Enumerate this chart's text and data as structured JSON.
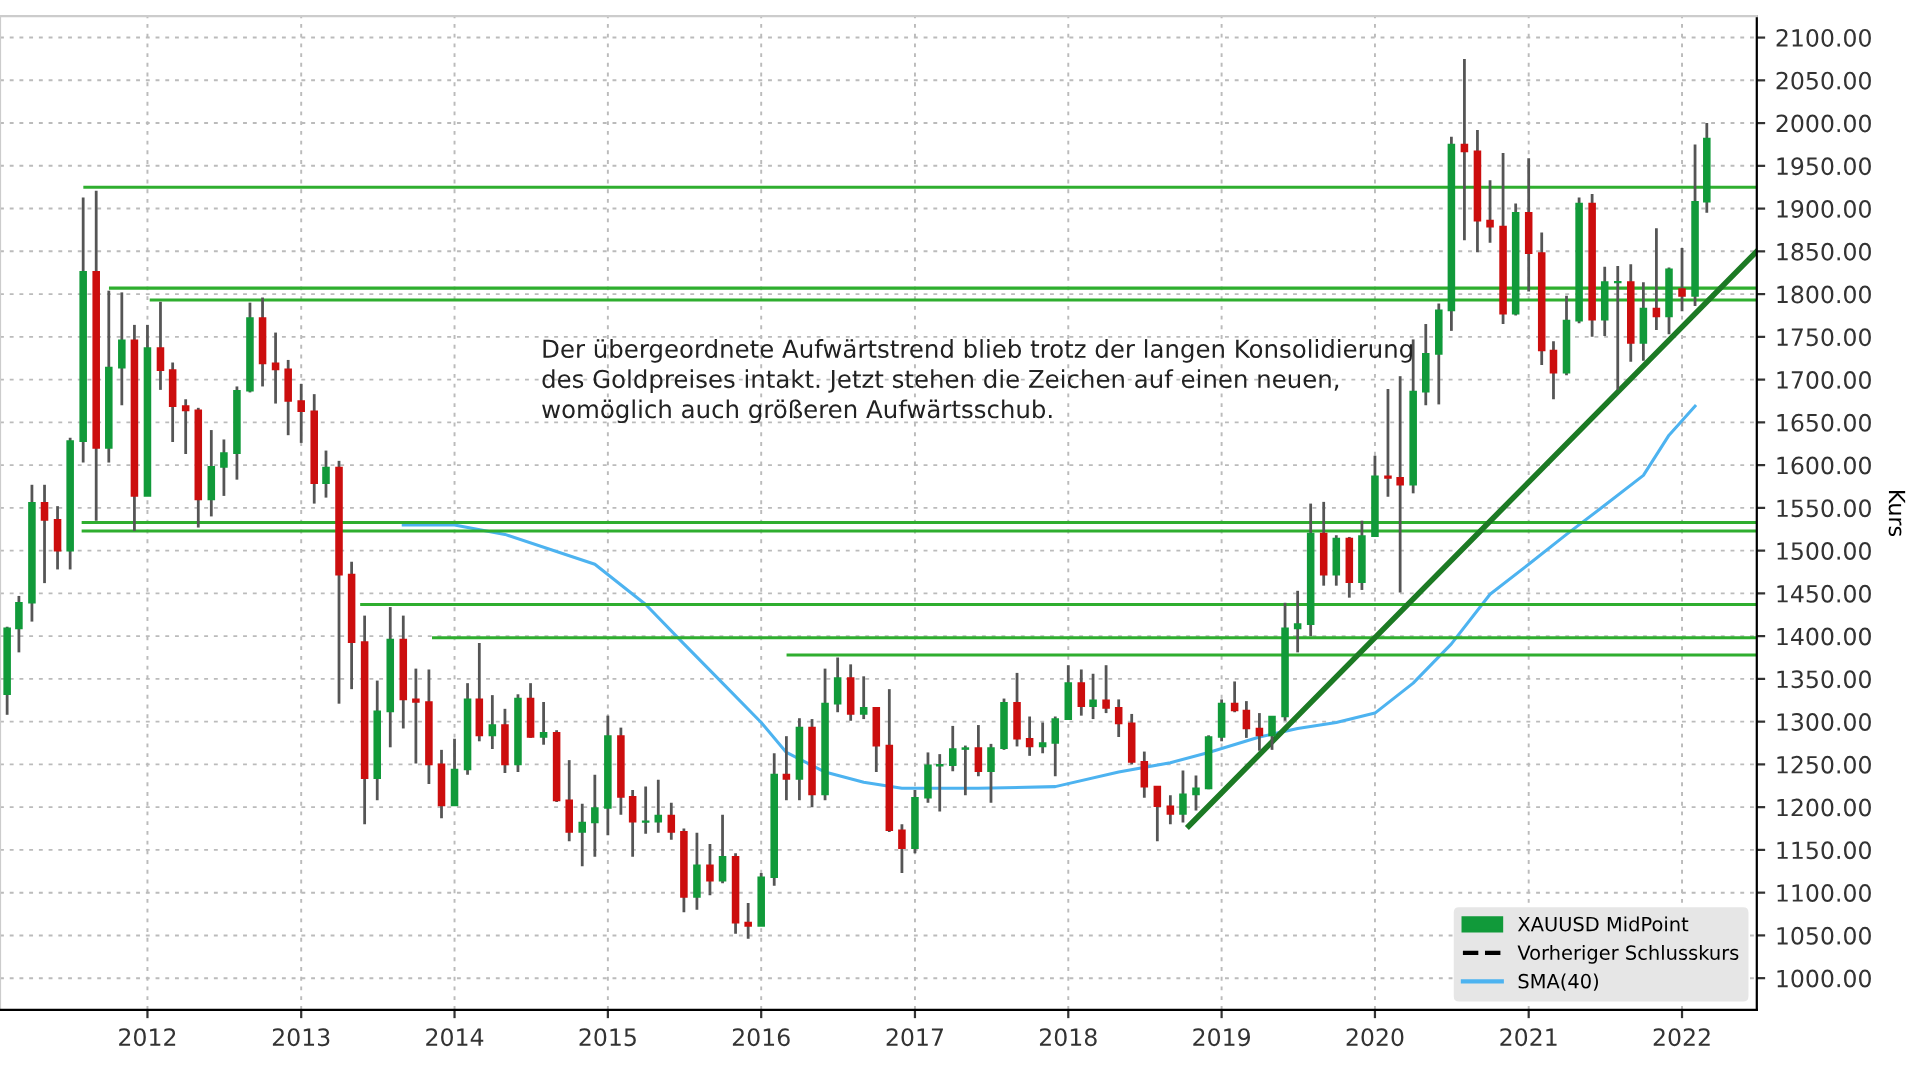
{
  "chart_data": {
    "type": "candlestick",
    "annotations": [
      "Der übergeordnete Aufwärtstrend blieb trotz der langen Konsolidierung des Goldpreises intakt. Jetzt stehen die Zeichen auf einen neuen, womöglich auch größeren Aufwärtsschub."
    ],
    "ylabel": "Kurs",
    "xlim": [
      "2011-01-15",
      "2022-06-28"
    ],
    "xticks": [
      {
        "value": "2012-01-01",
        "label": "2012"
      },
      {
        "value": "2013-01-01",
        "label": "2013"
      },
      {
        "value": "2014-01-01",
        "label": "2014"
      },
      {
        "value": "2015-01-01",
        "label": "2015"
      },
      {
        "value": "2016-01-01",
        "label": "2016"
      },
      {
        "value": "2017-01-01",
        "label": "2017"
      },
      {
        "value": "2018-01-01",
        "label": "2018"
      },
      {
        "value": "2019-01-01",
        "label": "2019"
      },
      {
        "value": "2020-01-01",
        "label": "2020"
      },
      {
        "value": "2021-01-01",
        "label": "2021"
      },
      {
        "value": "2022-01-01",
        "label": "2022"
      }
    ],
    "ylim": [
      963,
      2125
    ],
    "yticks": [
      {
        "value": 1000,
        "label": "1000.00"
      },
      {
        "value": 1050,
        "label": "1050.00"
      },
      {
        "value": 1100,
        "label": "1100.00"
      },
      {
        "value": 1150,
        "label": "1150.00"
      },
      {
        "value": 1200,
        "label": "1200.00"
      },
      {
        "value": 1250,
        "label": "1250.00"
      },
      {
        "value": 1300,
        "label": "1300.00"
      },
      {
        "value": 1350,
        "label": "1350.00"
      },
      {
        "value": 1400,
        "label": "1400.00"
      },
      {
        "value": 1450,
        "label": "1450.00"
      },
      {
        "value": 1500,
        "label": "1500.00"
      },
      {
        "value": 1550,
        "label": "1550.00"
      },
      {
        "value": 1600,
        "label": "1600.00"
      },
      {
        "value": 1650,
        "label": "1650.00"
      },
      {
        "value": 1700,
        "label": "1700.00"
      },
      {
        "value": 1750,
        "label": "1750.00"
      },
      {
        "value": 1800,
        "label": "1800.00"
      },
      {
        "value": 1850,
        "label": "1850.00"
      },
      {
        "value": 1900,
        "label": "1900.00"
      },
      {
        "value": 1950,
        "label": "1950.00"
      },
      {
        "value": 2000,
        "label": "2000.00"
      },
      {
        "value": 2050,
        "label": "2050.00"
      },
      {
        "value": 2100,
        "label": "2100.00"
      }
    ],
    "grid": true,
    "legend": "bottom right",
    "series": [
      {
        "name": "XAUUSD MidPoint",
        "colors": [
          "#119a3a",
          "#119a3a",
          "#119a3a",
          "#cc0e0e",
          "#cc0e0e",
          "#119a3a",
          "#119a3a",
          "#cc0e0e",
          "#119a3a",
          "#119a3a",
          "#cc0e0e",
          "#119a3a",
          "#cc0e0e",
          "#cc0e0e",
          "#cc0e0e",
          "#cc0e0e",
          "#119a3a",
          "#119a3a",
          "#119a3a",
          "#119a3a",
          "#cc0e0e",
          "#cc0e0e",
          "#cc0e0e",
          "#cc0e0e",
          "#cc0e0e",
          "#119a3a",
          "#cc0e0e",
          "#cc0e0e",
          "#cc0e0e",
          "#119a3a",
          "#119a3a",
          "#cc0e0e",
          "#cc0e0e",
          "#cc0e0e",
          "#cc0e0e",
          "#119a3a",
          "#119a3a",
          "#cc0e0e",
          "#119a3a",
          "#cc0e0e",
          "#119a3a",
          "#cc0e0e",
          "#119a3a",
          "#cc0e0e",
          "#cc0e0e",
          "#119a3a",
          "#119a3a",
          "#119a3a",
          "#cc0e0e",
          "#cc0e0e",
          "#119a3a",
          "#119a3a",
          "#cc0e0e",
          "#cc0e0e",
          "#119a3a",
          "#cc0e0e",
          "#119a3a",
          "#cc0e0e",
          "#cc0e0e",
          "#119a3a",
          "#119a3a",
          "#cc0e0e",
          "#119a3a",
          "#cc0e0e",
          "#119a3a",
          "#119a3a",
          "#cc0e0e",
          "#119a3a",
          "#cc0e0e",
          "#cc0e0e",
          "#cc0e0e",
          "#119a3a",
          "#119a3a",
          "#119a3a",
          "#119a3a",
          "#119a3a",
          "#cc0e0e",
          "#119a3a",
          "#119a3a",
          "#cc0e0e",
          "#cc0e0e",
          "#119a3a",
          "#119a3a",
          "#119a3a",
          "#cc0e0e",
          "#119a3a",
          "#cc0e0e",
          "#cc0e0e",
          "#cc0e0e",
          "#cc0e0e",
          "#cc0e0e",
          "#cc0e0e",
          "#119a3a",
          "#119a3a",
          "#119a3a",
          "#119a3a",
          "#cc0e0e",
          "#cc0e0e",
          "#cc0e0e",
          "#119a3a",
          "#119a3a",
          "#119a3a",
          "#119a3a",
          "#cc0e0e",
          "#119a3a",
          "#cc0e0e",
          "#119a3a",
          "#119a3a",
          "#cc0e0e",
          "#cc0e0e",
          "#119a3a",
          "#119a3a",
          "#119a3a",
          "#119a3a",
          "#cc0e0e",
          "#cc0e0e",
          "#cc0e0e",
          "#cc0e0e",
          "#119a3a",
          "#cc0e0e",
          "#cc0e0e",
          "#cc0e0e",
          "#119a3a",
          "#119a3a",
          "#cc0e0e",
          "#119a3a",
          "#119a3a",
          "#cc0e0e",
          "#119a3a",
          "#cc0e0e",
          "#119a3a",
          "#cc0e0e",
          "#119a3a",
          "#119a3a"
        ],
        "x": [
          "2011-02",
          "2011-03",
          "2011-04",
          "2011-05",
          "2011-06",
          "2011-07",
          "2011-08",
          "2011-09",
          "2011-10",
          "2011-11",
          "2011-12",
          "2012-01",
          "2012-02",
          "2012-03",
          "2012-04",
          "2012-05",
          "2012-06",
          "2012-07",
          "2012-08",
          "2012-09",
          "2012-10",
          "2012-11",
          "2012-12",
          "2013-01",
          "2013-02",
          "2013-03",
          "2013-04",
          "2013-05",
          "2013-06",
          "2013-07",
          "2013-08",
          "2013-09",
          "2013-10",
          "2013-11",
          "2013-12",
          "2014-01",
          "2014-02",
          "2014-03",
          "2014-04",
          "2014-05",
          "2014-06",
          "2014-07",
          "2014-08",
          "2014-09",
          "2014-10",
          "2014-11",
          "2014-12",
          "2015-01",
          "2015-02",
          "2015-03",
          "2015-04",
          "2015-05",
          "2015-06",
          "2015-07",
          "2015-08",
          "2015-09",
          "2015-10",
          "2015-11",
          "2015-12",
          "2016-01",
          "2016-02",
          "2016-03",
          "2016-04",
          "2016-05",
          "2016-06",
          "2016-07",
          "2016-08",
          "2016-09",
          "2016-10",
          "2016-11",
          "2016-12",
          "2017-01",
          "2017-02",
          "2017-03",
          "2017-04",
          "2017-05",
          "2017-06",
          "2017-07",
          "2017-08",
          "2017-09",
          "2017-10",
          "2017-11",
          "2017-12",
          "2018-01",
          "2018-02",
          "2018-03",
          "2018-04",
          "2018-05",
          "2018-06",
          "2018-07",
          "2018-08",
          "2018-09",
          "2018-10",
          "2018-11",
          "2018-12",
          "2019-01",
          "2019-02",
          "2019-03",
          "2019-04",
          "2019-05",
          "2019-06",
          "2019-07",
          "2019-08",
          "2019-09",
          "2019-10",
          "2019-11",
          "2019-12",
          "2020-01",
          "2020-02",
          "2020-03",
          "2020-04",
          "2020-05",
          "2020-06",
          "2020-07",
          "2020-08",
          "2020-09",
          "2020-10",
          "2020-11",
          "2020-12",
          "2021-01",
          "2021-02",
          "2021-03",
          "2021-04",
          "2021-05",
          "2021-06",
          "2021-07",
          "2021-08",
          "2021-09",
          "2021-10",
          "2021-11",
          "2021-12",
          "2022-01",
          "2022-02",
          "2022-03"
        ],
        "ohlc": [
          [
            1332,
            1411,
            1308,
            1409
          ],
          [
            1409,
            1447,
            1381,
            1439
          ],
          [
            1439,
            1577,
            1417,
            1556
          ],
          [
            1556,
            1577,
            1462,
            1536
          ],
          [
            1536,
            1552,
            1478,
            1500
          ],
          [
            1500,
            1632,
            1478,
            1628
          ],
          [
            1628,
            1913,
            1603,
            1826
          ],
          [
            1826,
            1921,
            1535,
            1620
          ],
          [
            1620,
            1804,
            1603,
            1714
          ],
          [
            1714,
            1802,
            1670,
            1746
          ],
          [
            1746,
            1764,
            1523,
            1564
          ],
          [
            1564,
            1764,
            1564,
            1737
          ],
          [
            1737,
            1791,
            1688,
            1711
          ],
          [
            1711,
            1720,
            1627,
            1669
          ],
          [
            1669,
            1677,
            1613,
            1664
          ],
          [
            1664,
            1667,
            1527,
            1560
          ],
          [
            1560,
            1641,
            1540,
            1598
          ],
          [
            1598,
            1630,
            1564,
            1614
          ],
          [
            1614,
            1692,
            1583,
            1687
          ],
          [
            1687,
            1790,
            1685,
            1772
          ],
          [
            1772,
            1796,
            1692,
            1719
          ],
          [
            1719,
            1755,
            1672,
            1712
          ],
          [
            1712,
            1723,
            1635,
            1675
          ],
          [
            1675,
            1695,
            1626,
            1663
          ],
          [
            1663,
            1683,
            1555,
            1579
          ],
          [
            1579,
            1617,
            1562,
            1597
          ],
          [
            1597,
            1605,
            1321,
            1472
          ],
          [
            1472,
            1487,
            1338,
            1393
          ],
          [
            1393,
            1424,
            1180,
            1234
          ],
          [
            1234,
            1348,
            1208,
            1312
          ],
          [
            1312,
            1434,
            1270,
            1396
          ],
          [
            1396,
            1424,
            1292,
            1326
          ],
          [
            1326,
            1362,
            1251,
            1323
          ],
          [
            1323,
            1361,
            1227,
            1250
          ],
          [
            1250,
            1267,
            1187,
            1202
          ],
          [
            1202,
            1280,
            1202,
            1244
          ],
          [
            1244,
            1345,
            1238,
            1326
          ],
          [
            1326,
            1392,
            1277,
            1284
          ],
          [
            1284,
            1331,
            1268,
            1296
          ],
          [
            1296,
            1315,
            1240,
            1250
          ],
          [
            1250,
            1332,
            1241,
            1327
          ],
          [
            1327,
            1345,
            1281,
            1282
          ],
          [
            1282,
            1323,
            1273,
            1287
          ],
          [
            1287,
            1290,
            1206,
            1208
          ],
          [
            1208,
            1255,
            1160,
            1171
          ],
          [
            1171,
            1204,
            1131,
            1182
          ],
          [
            1182,
            1238,
            1142,
            1199
          ],
          [
            1199,
            1307,
            1167,
            1283
          ],
          [
            1283,
            1293,
            1191,
            1212
          ],
          [
            1212,
            1220,
            1142,
            1183
          ],
          [
            1183,
            1224,
            1169,
            1183
          ],
          [
            1183,
            1232,
            1170,
            1190
          ],
          [
            1190,
            1205,
            1162,
            1171
          ],
          [
            1171,
            1175,
            1077,
            1095
          ],
          [
            1095,
            1170,
            1080,
            1132
          ],
          [
            1132,
            1157,
            1097,
            1114
          ],
          [
            1114,
            1191,
            1111,
            1142
          ],
          [
            1142,
            1146,
            1052,
            1065
          ],
          [
            1065,
            1088,
            1046,
            1061
          ],
          [
            1061,
            1123,
            1061,
            1118
          ],
          [
            1118,
            1263,
            1108,
            1238
          ],
          [
            1238,
            1283,
            1208,
            1233
          ],
          [
            1233,
            1304,
            1208,
            1293
          ],
          [
            1293,
            1303,
            1200,
            1215
          ],
          [
            1215,
            1362,
            1208,
            1321
          ],
          [
            1321,
            1375,
            1311,
            1351
          ],
          [
            1351,
            1367,
            1301,
            1309
          ],
          [
            1309,
            1353,
            1303,
            1316
          ],
          [
            1316,
            1317,
            1241,
            1272
          ],
          [
            1272,
            1338,
            1171,
            1173
          ],
          [
            1173,
            1180,
            1123,
            1152
          ],
          [
            1152,
            1220,
            1146,
            1211
          ],
          [
            1211,
            1264,
            1205,
            1249
          ],
          [
            1249,
            1262,
            1195,
            1249
          ],
          [
            1249,
            1295,
            1242,
            1268
          ],
          [
            1268,
            1272,
            1214,
            1269
          ],
          [
            1269,
            1296,
            1236,
            1242
          ],
          [
            1242,
            1274,
            1205,
            1269
          ],
          [
            1269,
            1327,
            1267,
            1322
          ],
          [
            1322,
            1357,
            1271,
            1280
          ],
          [
            1280,
            1306,
            1260,
            1271
          ],
          [
            1271,
            1299,
            1263,
            1275
          ],
          [
            1275,
            1306,
            1236,
            1303
          ],
          [
            1303,
            1366,
            1303,
            1345
          ],
          [
            1345,
            1361,
            1307,
            1318
          ],
          [
            1318,
            1356,
            1303,
            1325
          ],
          [
            1325,
            1366,
            1310,
            1316
          ],
          [
            1316,
            1326,
            1282,
            1298
          ],
          [
            1298,
            1309,
            1250,
            1253
          ],
          [
            1253,
            1265,
            1211,
            1224
          ],
          [
            1224,
            1224,
            1160,
            1201
          ],
          [
            1201,
            1214,
            1180,
            1192
          ],
          [
            1192,
            1243,
            1182,
            1215
          ],
          [
            1215,
            1237,
            1196,
            1222
          ],
          [
            1222,
            1284,
            1221,
            1282
          ],
          [
            1282,
            1326,
            1277,
            1321
          ],
          [
            1321,
            1347,
            1311,
            1313
          ],
          [
            1313,
            1324,
            1281,
            1292
          ],
          [
            1292,
            1310,
            1266,
            1284
          ],
          [
            1284,
            1306,
            1267,
            1306
          ],
          [
            1306,
            1439,
            1301,
            1409
          ],
          [
            1409,
            1453,
            1381,
            1414
          ],
          [
            1414,
            1555,
            1400,
            1520
          ],
          [
            1520,
            1557,
            1459,
            1472
          ],
          [
            1472,
            1518,
            1459,
            1514
          ],
          [
            1514,
            1516,
            1445,
            1463
          ],
          [
            1463,
            1535,
            1454,
            1517
          ],
          [
            1517,
            1611,
            1517,
            1587
          ],
          [
            1587,
            1689,
            1563,
            1585
          ],
          [
            1585,
            1704,
            1451,
            1577
          ],
          [
            1577,
            1747,
            1567,
            1686
          ],
          [
            1686,
            1765,
            1670,
            1730
          ],
          [
            1730,
            1789,
            1671,
            1781
          ],
          [
            1781,
            1984,
            1757,
            1975
          ],
          [
            1975,
            2075,
            1863,
            1967
          ],
          [
            1967,
            1992,
            1849,
            1886
          ],
          [
            1886,
            1933,
            1860,
            1879
          ],
          [
            1879,
            1965,
            1765,
            1777
          ],
          [
            1777,
            1906,
            1775,
            1895
          ],
          [
            1895,
            1959,
            1803,
            1848
          ],
          [
            1848,
            1872,
            1717,
            1734
          ],
          [
            1734,
            1745,
            1677,
            1708
          ],
          [
            1708,
            1798,
            1705,
            1769
          ],
          [
            1769,
            1913,
            1766,
            1906
          ],
          [
            1906,
            1917,
            1750,
            1770
          ],
          [
            1770,
            1832,
            1751,
            1814
          ],
          [
            1814,
            1833,
            1688,
            1814
          ],
          [
            1814,
            1835,
            1721,
            1743
          ],
          [
            1743,
            1814,
            1722,
            1783
          ],
          [
            1783,
            1877,
            1758,
            1774
          ],
          [
            1774,
            1831,
            1753,
            1829
          ],
          [
            1806,
            1854,
            1780,
            1798
          ],
          [
            1798,
            1975,
            1786,
            1908
          ],
          [
            1908,
            2000,
            1895,
            1982
          ]
        ]
      },
      {
        "type": "line",
        "name": "Vorheriger Schlusskurs",
        "color": "#000000",
        "line_style": "dashed"
      },
      {
        "type": "line",
        "name": "SMA(40)",
        "color": "#4db3f0",
        "line_style": "solid",
        "x": [
          "2013-09",
          "2014-01",
          "2014-05",
          "2014-12",
          "2015-04",
          "2015-07",
          "2015-10",
          "2016-01",
          "2016-03",
          "2016-06",
          "2016-09",
          "2016-12",
          "2017-06",
          "2017-12",
          "2018-05",
          "2018-09",
          "2018-12",
          "2019-04",
          "2019-07",
          "2019-10",
          "2020-01",
          "2020-04",
          "2020-07",
          "2020-10",
          "2021-01",
          "2021-04",
          "2021-07",
          "2021-10",
          "2021-12",
          "2022-02"
        ],
        "values": [
          1530,
          1530,
          1519,
          1484,
          1437,
          1391,
          1345,
          1299,
          1264,
          1241,
          1229,
          1222,
          1222,
          1224,
          1241,
          1252,
          1264,
          1282,
          1292,
          1299,
          1310,
          1345,
          1391,
          1449,
          1484,
          1519,
          1553,
          1588,
          1635,
          1669
        ]
      },
      {
        "type": "line",
        "color": "#2fae2f",
        "line_style": "solid",
        "x": [
          "2011-08-05",
          "2022-06-28"
        ],
        "values": [
          1925,
          1925
        ]
      },
      {
        "type": "line",
        "color": "#2fae2f",
        "line_style": "solid",
        "x": [
          "2011-10-05",
          "2022-06-28"
        ],
        "values": [
          1807,
          1807
        ]
      },
      {
        "type": "line",
        "color": "#2fae2f",
        "line_style": "solid",
        "x": [
          "2012-01-10",
          "2022-06-28"
        ],
        "values": [
          1793,
          1793
        ]
      },
      {
        "type": "line",
        "color": "#2fae2f",
        "line_style": "solid",
        "x": [
          "2011-08-01",
          "2022-06-28"
        ],
        "values": [
          1533,
          1533
        ]
      },
      {
        "type": "line",
        "color": "#2fae2f",
        "line_style": "solid",
        "x": [
          "2011-08-01",
          "2022-06-28"
        ],
        "values": [
          1523,
          1523
        ]
      },
      {
        "type": "line",
        "color": "#2fae2f",
        "line_style": "solid",
        "x": [
          "2013-05-25",
          "2022-06-28"
        ],
        "values": [
          1437,
          1437
        ]
      },
      {
        "type": "line",
        "color": "#2fae2f",
        "line_style": "solid",
        "x": [
          "2013-11-12",
          "2022-06-28"
        ],
        "values": [
          1398,
          1398
        ]
      },
      {
        "type": "line",
        "color": "#2fae2f",
        "line_style": "solid",
        "x": [
          "2016-03-05",
          "2022-06-28"
        ],
        "values": [
          1378,
          1378
        ]
      },
      {
        "type": "line",
        "color": "#1c7a24",
        "line_style": "solid",
        "x": [
          "2018-10-15",
          "2022-06-28"
        ],
        "values": [
          1178,
          1850
        ]
      }
    ]
  }
}
